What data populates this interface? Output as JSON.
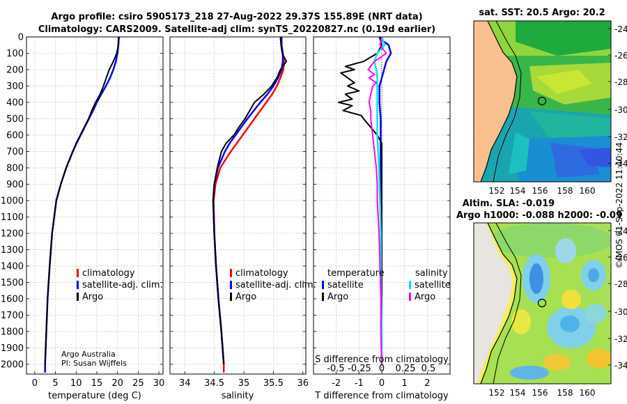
{
  "header": {
    "line1": "Argo profile: csiro 5905173_218 27-Aug-2022 29.37S 155.89E (NRT data)",
    "line2": "Climatology: CARS2009. Satellite-adj clim: synTS_20220827.nc (0.19d earlier)"
  },
  "credit": {
    "org": "Argo Australia",
    "pi": "PI: Susan Wijffels"
  },
  "stamp": "©IMOS 01-Sep-2022 11:40:44",
  "colors": {
    "climatology": "#ff0000",
    "satellite": "#0000ff",
    "argo": "#000000",
    "sat_salinity": "#00e5ee",
    "argo_salinity": "#ff00ff",
    "land": "#f8c08c",
    "grid": "#b8b8b8"
  },
  "maps": {
    "sst_title": "sat. SST: 20.5 Argo: 20.2",
    "sla_title1": "Altim. SLA: -0.019",
    "sla_title2": "Argo h1000: -0.088 h2000: -0.09",
    "lat_ticks": [
      "-24",
      "-26",
      "-28",
      "-30",
      "-32",
      "-34"
    ],
    "lon_ticks": [
      "152",
      "154",
      "156",
      "158",
      "160"
    ]
  },
  "chart_data": [
    {
      "type": "line",
      "name": "temperature_profile",
      "xlabel": "temperature (deg C)",
      "ylabel": "pressure (dbar)",
      "xlim": [
        -2,
        31
      ],
      "ylim": [
        2060,
        0
      ],
      "xticks": [
        "0",
        "5",
        "10",
        "15",
        "20",
        "25",
        "30"
      ],
      "yticks": [
        "0",
        "100",
        "200",
        "300",
        "400",
        "500",
        "600",
        "700",
        "800",
        "900",
        "1000",
        "1100",
        "1200",
        "1300",
        "1400",
        "1500",
        "1600",
        "1700",
        "1800",
        "1900",
        "2000"
      ],
      "legend": [
        "climatology",
        "satellite-adj. clim.",
        "Argo"
      ],
      "series": [
        {
          "name": "climatology",
          "depth": [
            2000,
            2050
          ],
          "values": [
            2.5,
            2.5
          ]
        },
        {
          "name": "satellite-adj. clim.",
          "depth": [
            0,
            50,
            100,
            150,
            200,
            250,
            300,
            350,
            400,
            450,
            500,
            550,
            600,
            650,
            700,
            800,
            900,
            1000,
            1200,
            1400,
            1600,
            1800,
            2000,
            2050
          ],
          "values": [
            20.3,
            20.2,
            20.0,
            19.6,
            19.0,
            18.2,
            17.2,
            16.1,
            15.0,
            14.1,
            13.1,
            12.1,
            11.1,
            10.1,
            9.2,
            7.6,
            6.3,
            5.2,
            4.2,
            3.6,
            3.1,
            2.8,
            2.5,
            2.5
          ]
        },
        {
          "name": "Argo",
          "depth": [
            0,
            50,
            100,
            150,
            200,
            250,
            300,
            350,
            400,
            450,
            500,
            550,
            600,
            650,
            700,
            800,
            900,
            1000,
            1200,
            1400,
            1600,
            1800,
            2000
          ],
          "values": [
            20.4,
            20.2,
            19.8,
            19.0,
            18.0,
            17.3,
            16.6,
            15.8,
            14.7,
            13.8,
            13.0,
            12.0,
            11.0,
            10.0,
            9.2,
            7.6,
            6.3,
            5.2,
            4.2,
            3.6,
            3.1,
            2.8,
            2.5
          ]
        }
      ]
    },
    {
      "type": "line",
      "name": "salinity_profile",
      "xlabel": "salinity",
      "xlim": [
        33.75,
        36.05
      ],
      "ylim": [
        2060,
        0
      ],
      "xticks": [
        "34",
        "34.5",
        "35",
        "35.5",
        "36"
      ],
      "legend": [
        "climatology",
        "satellite-adj. clim.",
        "Argo"
      ],
      "series": [
        {
          "name": "climatology",
          "depth": [
            0,
            50,
            100,
            150,
            200,
            250,
            300,
            350,
            400,
            450,
            500,
            550,
            600,
            650,
            700,
            800,
            900,
            1000,
            1200,
            1400,
            1600,
            1800,
            2000,
            2050
          ],
          "values": [
            35.64,
            35.64,
            35.66,
            35.68,
            35.67,
            35.62,
            35.56,
            35.48,
            35.38,
            35.28,
            35.18,
            35.08,
            34.98,
            34.88,
            34.78,
            34.6,
            34.52,
            34.49,
            34.5,
            34.53,
            34.57,
            34.62,
            34.66,
            34.66
          ]
        },
        {
          "name": "satellite-adj. clim.",
          "depth": [
            0,
            50,
            100,
            150,
            200,
            250,
            300,
            350,
            400,
            450,
            500,
            550,
            600,
            650,
            700,
            800,
            900,
            1000,
            1200,
            1400,
            1600,
            1800,
            2000
          ],
          "values": [
            35.64,
            35.64,
            35.66,
            35.66,
            35.64,
            35.58,
            35.5,
            35.4,
            35.28,
            35.17,
            35.06,
            34.96,
            34.86,
            34.76,
            34.68,
            34.56,
            34.5,
            34.48,
            34.5,
            34.53,
            34.57,
            34.62,
            34.66
          ]
        },
        {
          "name": "Argo",
          "depth": [
            0,
            50,
            100,
            150,
            200,
            250,
            300,
            350,
            400,
            450,
            500,
            550,
            600,
            650,
            700,
            800,
            900,
            1000,
            1200,
            1400,
            1600,
            1800,
            2000
          ],
          "values": [
            35.62,
            35.63,
            35.65,
            35.72,
            35.62,
            35.56,
            35.47,
            35.34,
            35.18,
            35.1,
            35.02,
            34.92,
            34.83,
            34.7,
            34.62,
            34.55,
            34.5,
            34.48,
            34.5,
            34.53,
            34.57,
            34.62,
            34.66
          ]
        }
      ]
    },
    {
      "type": "line",
      "name": "difference_from_climatology",
      "xlabel": "T difference from climatology",
      "xlabel_top": "S difference from climatology",
      "xlim": [
        -3,
        3
      ],
      "ylim": [
        2060,
        0
      ],
      "xticks": [
        "-2",
        "-1",
        "0",
        "1",
        "2"
      ],
      "s_xticks": [
        "-0.5",
        "-0.25",
        "0",
        "0.25",
        "0.5"
      ],
      "legend_temperature_title": "temperature",
      "legend_salinity_title": "salinity",
      "legend_temperature": [
        "satellite",
        "Argo"
      ],
      "legend_salinity": [
        "satellite",
        "Argo"
      ],
      "series": [
        {
          "name": "temperature satellite",
          "depth": [
            0,
            20,
            50,
            100,
            150,
            200,
            250,
            300,
            400,
            500,
            600,
            800,
            1000,
            1200,
            1500,
            1800,
            2000
          ],
          "values": [
            -0.1,
            0.0,
            0.3,
            0.4,
            0.2,
            0.1,
            0.0,
            -0.1,
            -0.1,
            -0.05,
            -0.05,
            -0.05,
            -0.05,
            -0.02,
            -0.02,
            -0.02,
            0.0
          ]
        },
        {
          "name": "temperature Argo",
          "depth": [
            0,
            50,
            100,
            150,
            180,
            200,
            220,
            250,
            280,
            300,
            330,
            350,
            380,
            400,
            420,
            450,
            480,
            500,
            550,
            600,
            650,
            700,
            800,
            1000,
            1500,
            2000
          ],
          "values": [
            -0.1,
            0.0,
            -0.2,
            -0.8,
            -1.6,
            -1.2,
            -1.8,
            -1.5,
            -1.2,
            -1.5,
            -1.0,
            -1.6,
            -1.3,
            -1.9,
            -1.3,
            -1.7,
            -0.9,
            -0.8,
            -0.5,
            -0.2,
            0.0,
            0.0,
            0.0,
            0.0,
            0.0,
            0.0
          ]
        },
        {
          "name": "salinity satellite",
          "depth": [
            0,
            50,
            100,
            150,
            200,
            250,
            300,
            400,
            500,
            600,
            700,
            800,
            1000,
            1200,
            1500,
            1800,
            2000
          ],
          "values": [
            0.0,
            0.03,
            -0.05,
            -0.08,
            -0.06,
            -0.05,
            -0.05,
            -0.05,
            -0.05,
            -0.05,
            -0.04,
            -0.03,
            -0.02,
            -0.01,
            -0.01,
            0.0,
            0.0
          ]
        },
        {
          "name": "salinity Argo",
          "depth": [
            0,
            50,
            100,
            150,
            200,
            230,
            250,
            280,
            300,
            350,
            400,
            450,
            500,
            600,
            700,
            800,
            900,
            1000,
            1100,
            1200,
            1400,
            1600,
            1800,
            2000
          ],
          "values": [
            0.0,
            -0.02,
            0.05,
            -0.08,
            -0.15,
            -0.08,
            -0.14,
            -0.06,
            -0.1,
            -0.12,
            -0.14,
            -0.12,
            -0.12,
            -0.1,
            -0.08,
            -0.06,
            -0.05,
            -0.05,
            -0.04,
            -0.03,
            -0.02,
            -0.01,
            -0.01,
            0.0
          ]
        }
      ]
    }
  ]
}
